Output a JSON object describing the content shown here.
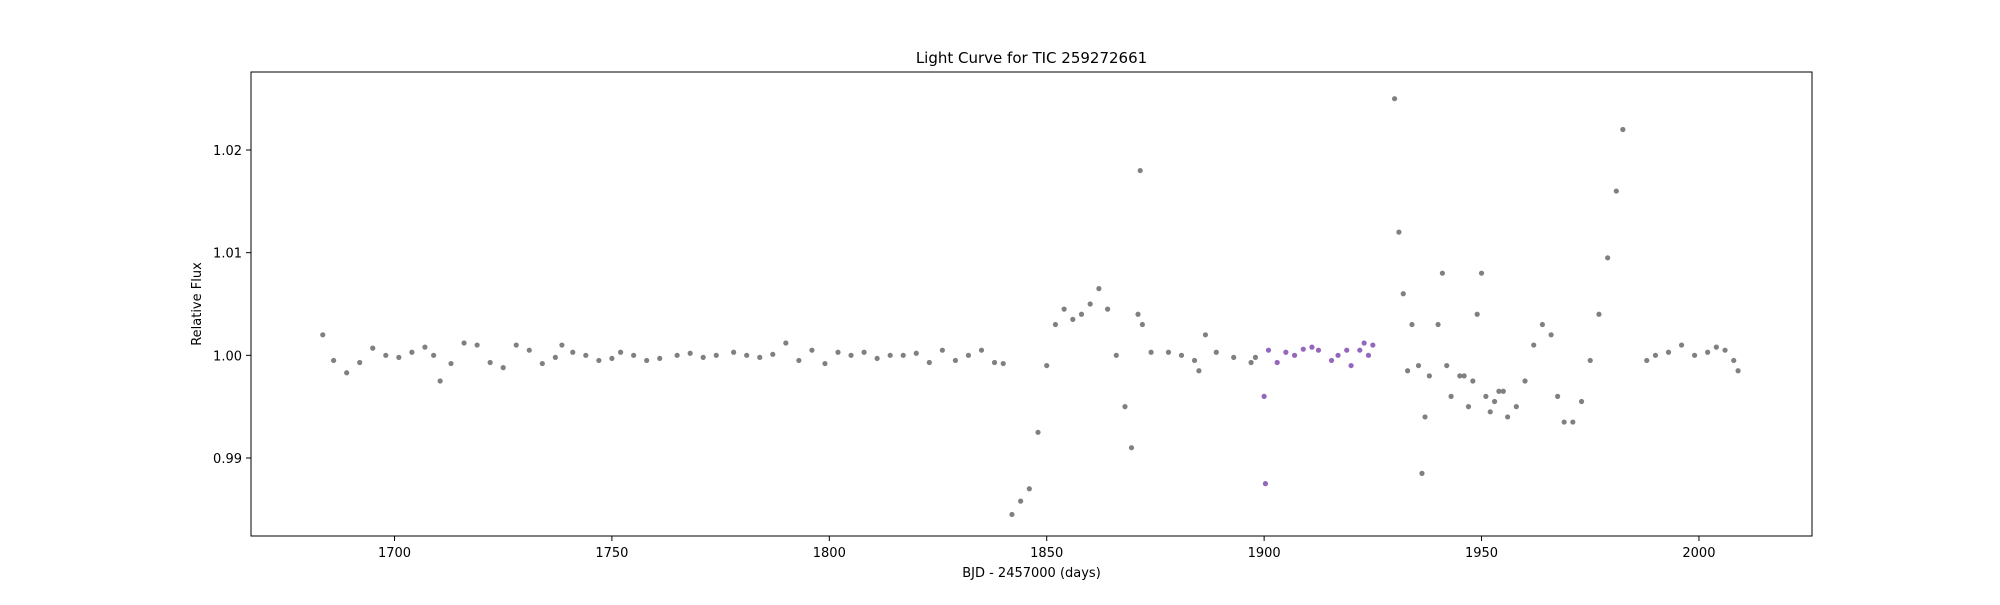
{
  "chart_data": {
    "type": "scatter",
    "title": "Light Curve for TIC 259272661",
    "xlabel": "BJD - 2457000 (days)",
    "ylabel": "Relative Flux",
    "xlim": [
      1667,
      2026
    ],
    "ylim": [
      0.9824,
      1.0276
    ],
    "xticks": [
      1700,
      1750,
      1800,
      1850,
      1900,
      1950,
      2000
    ],
    "yticks": [
      0.99,
      1.0,
      1.01,
      1.02
    ],
    "ytick_labels": [
      "0.99",
      "1.00",
      "1.01",
      "1.02"
    ],
    "grid": false,
    "legend": "none",
    "series": [
      {
        "color": "#808080",
        "points": [
          [
            1683.5,
            1.002
          ],
          [
            1686,
            0.9995
          ],
          [
            1689,
            0.9983
          ],
          [
            1692,
            0.9993
          ],
          [
            1695,
            1.0007
          ],
          [
            1698,
            1.0
          ],
          [
            1701,
            0.9998
          ],
          [
            1704,
            1.0003
          ],
          [
            1707,
            1.0008
          ],
          [
            1709,
            1.0
          ],
          [
            1710.5,
            0.9975
          ],
          [
            1713,
            0.9992
          ],
          [
            1716,
            1.0012
          ],
          [
            1719,
            1.001
          ],
          [
            1722,
            0.9993
          ],
          [
            1725,
            0.9988
          ],
          [
            1728,
            1.001
          ],
          [
            1731,
            1.0005
          ],
          [
            1734,
            0.9992
          ],
          [
            1737,
            0.9998
          ],
          [
            1738.5,
            1.001
          ],
          [
            1741,
            1.0003
          ],
          [
            1744,
            1.0
          ],
          [
            1747,
            0.9995
          ],
          [
            1750,
            0.9997
          ],
          [
            1752,
            1.0003
          ],
          [
            1755,
            1.0
          ],
          [
            1758,
            0.9995
          ],
          [
            1761,
            0.9997
          ],
          [
            1765,
            1.0
          ],
          [
            1768,
            1.0002
          ],
          [
            1771,
            0.9998
          ],
          [
            1774,
            1.0
          ],
          [
            1778,
            1.0003
          ],
          [
            1781,
            1.0
          ],
          [
            1784,
            0.9998
          ],
          [
            1787,
            1.0001
          ],
          [
            1790,
            1.0012
          ],
          [
            1793,
            0.9995
          ],
          [
            1796,
            1.0005
          ],
          [
            1799,
            0.9992
          ],
          [
            1802,
            1.0003
          ],
          [
            1805,
            1.0
          ],
          [
            1808,
            1.0003
          ],
          [
            1811,
            0.9997
          ],
          [
            1814,
            1.0
          ],
          [
            1817,
            1.0
          ],
          [
            1820,
            1.0002
          ],
          [
            1823,
            0.9993
          ],
          [
            1826,
            1.0005
          ],
          [
            1829,
            0.9995
          ],
          [
            1832,
            1.0
          ],
          [
            1835,
            1.0005
          ],
          [
            1838,
            0.9993
          ],
          [
            1840,
            0.9992
          ],
          [
            1842,
            0.9845
          ],
          [
            1844,
            0.9858
          ],
          [
            1846,
            0.987
          ],
          [
            1848,
            0.9925
          ],
          [
            1850,
            0.999
          ],
          [
            1852,
            1.003
          ],
          [
            1854,
            1.0045
          ],
          [
            1856,
            1.0035
          ],
          [
            1858,
            1.004
          ],
          [
            1860,
            1.005
          ],
          [
            1862,
            1.0065
          ],
          [
            1864,
            1.0045
          ],
          [
            1866,
            1.0
          ],
          [
            1868,
            0.995
          ],
          [
            1869.5,
            0.991
          ],
          [
            1871,
            1.004
          ],
          [
            1871.5,
            1.018
          ],
          [
            1872,
            1.003
          ],
          [
            1874,
            1.0003
          ],
          [
            1878,
            1.0003
          ],
          [
            1881,
            1.0
          ],
          [
            1884,
            0.9995
          ],
          [
            1885,
            0.9985
          ],
          [
            1886.5,
            1.002
          ],
          [
            1889,
            1.0003
          ],
          [
            1893,
            0.9998
          ],
          [
            1897,
            0.9993
          ],
          [
            1898,
            0.9998
          ],
          [
            1930,
            1.025
          ],
          [
            1931,
            1.012
          ],
          [
            1932,
            1.006
          ],
          [
            1933,
            0.9985
          ],
          [
            1934,
            1.003
          ],
          [
            1935.5,
            0.999
          ],
          [
            1936.3,
            0.9885
          ],
          [
            1937,
            0.994
          ],
          [
            1938,
            0.998
          ],
          [
            1940,
            1.003
          ],
          [
            1941,
            1.008
          ],
          [
            1942,
            0.999
          ],
          [
            1943,
            0.996
          ],
          [
            1945,
            0.998
          ],
          [
            1946,
            0.998
          ],
          [
            1947,
            0.995
          ],
          [
            1948,
            0.9975
          ],
          [
            1949,
            1.004
          ],
          [
            1950,
            1.008
          ],
          [
            1951,
            0.996
          ],
          [
            1952,
            0.9945
          ],
          [
            1953,
            0.9955
          ],
          [
            1954,
            0.9965
          ],
          [
            1955,
            0.9965
          ],
          [
            1956,
            0.994
          ],
          [
            1958,
            0.995
          ],
          [
            1960,
            0.9975
          ],
          [
            1962,
            1.001
          ],
          [
            1964,
            1.003
          ],
          [
            1966,
            1.002
          ],
          [
            1967.5,
            0.996
          ],
          [
            1969,
            0.9935
          ],
          [
            1971,
            0.9935
          ],
          [
            1973,
            0.9955
          ],
          [
            1975,
            0.9995
          ],
          [
            1977,
            1.004
          ],
          [
            1979,
            1.0095
          ],
          [
            1981,
            1.016
          ],
          [
            1982.5,
            1.022
          ],
          [
            1988,
            0.9995
          ],
          [
            1990,
            1.0
          ],
          [
            1993,
            1.0003
          ],
          [
            1996,
            1.001
          ],
          [
            1999,
            1.0
          ],
          [
            2002,
            1.0003
          ],
          [
            2004,
            1.0008
          ],
          [
            2006,
            1.0005
          ],
          [
            2008,
            0.9995
          ],
          [
            2009,
            0.9985
          ]
        ]
      },
      {
        "color": "#9467bd",
        "points": [
          [
            1900,
            0.996
          ],
          [
            1900.3,
            0.9875
          ],
          [
            1901,
            1.0005
          ],
          [
            1903,
            0.9993
          ],
          [
            1905,
            1.0003
          ],
          [
            1907,
            1.0
          ],
          [
            1909,
            1.0006
          ],
          [
            1911,
            1.0008
          ],
          [
            1912.5,
            1.0005
          ],
          [
            1915.5,
            0.9995
          ],
          [
            1917,
            1.0
          ],
          [
            1919,
            1.0005
          ],
          [
            1920,
            0.999
          ],
          [
            1922,
            1.0005
          ],
          [
            1923,
            1.0012
          ],
          [
            1924,
            1.0
          ],
          [
            1925,
            1.001
          ]
        ]
      }
    ]
  }
}
